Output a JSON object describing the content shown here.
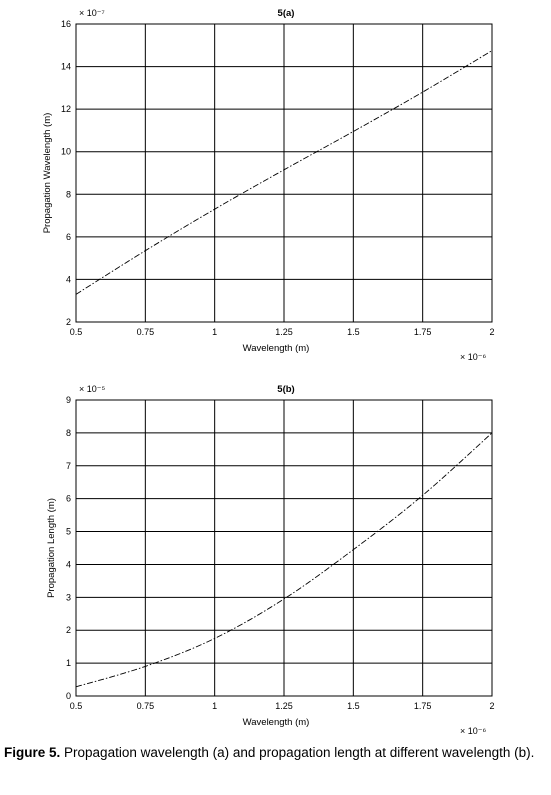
{
  "chart_data": [
    {
      "type": "line",
      "title": "5(a)",
      "xlabel": "Wavelength (m)",
      "ylabel": "Propagation Wavelength (m)",
      "x_multiplier": "× 10⁻⁶",
      "y_multiplier": "× 10⁻⁷",
      "xlim": [
        0.5,
        2
      ],
      "ylim": [
        2,
        16
      ],
      "x_ticks": [
        "0.5",
        "0.75",
        "1",
        "1.25",
        "1.5",
        "1.75",
        "2"
      ],
      "y_ticks": [
        "2",
        "4",
        "6",
        "8",
        "10",
        "12",
        "14",
        "16"
      ],
      "grid": true,
      "line_style": "dash-dot",
      "series": [
        {
          "x": [
            0.5,
            0.75,
            1.0,
            1.25,
            1.5,
            1.75,
            2.0
          ],
          "y": [
            3.3,
            5.35,
            7.3,
            9.15,
            10.95,
            12.8,
            14.75
          ]
        }
      ]
    },
    {
      "type": "line",
      "title": "5(b)",
      "xlabel": "Wavelength (m)",
      "ylabel": "Propagation Length (m)",
      "x_multiplier": "× 10⁻⁶",
      "y_multiplier": "× 10⁻⁵",
      "xlim": [
        0.5,
        2
      ],
      "ylim": [
        0,
        9
      ],
      "x_ticks": [
        "0.5",
        "0.75",
        "1",
        "1.25",
        "1.5",
        "1.75",
        "2"
      ],
      "y_ticks": [
        "0",
        "1",
        "2",
        "3",
        "4",
        "5",
        "6",
        "7",
        "8",
        "9"
      ],
      "grid": true,
      "line_style": "dash-dot",
      "series": [
        {
          "x": [
            0.5,
            0.75,
            1.0,
            1.25,
            1.5,
            1.75,
            2.0
          ],
          "y": [
            0.28,
            0.9,
            1.75,
            2.95,
            4.45,
            6.1,
            8.0
          ]
        }
      ]
    }
  ],
  "caption": {
    "label": "Figure 5.",
    "text": "Propagation wavelength (a) and propagation length at different wavelength (b)."
  }
}
